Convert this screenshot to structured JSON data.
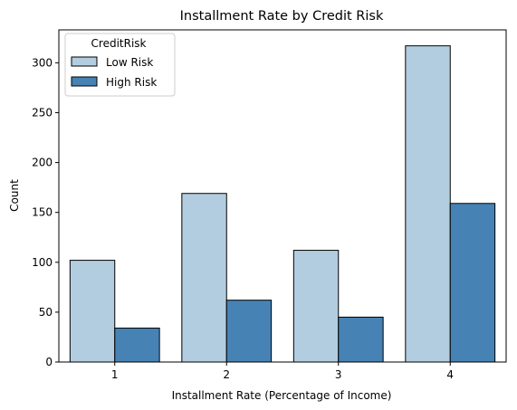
{
  "chart_data": {
    "type": "bar",
    "title": "Installment Rate by Credit Risk",
    "xlabel": "Installment Rate (Percentage of Income)",
    "ylabel": "Count",
    "categories": [
      "1",
      "2",
      "3",
      "4"
    ],
    "series": [
      {
        "name": "Low Risk",
        "color": "#b3cde0",
        "values": [
          102,
          169,
          112,
          317
        ]
      },
      {
        "name": "High Risk",
        "color": "#4682b4",
        "values": [
          34,
          62,
          45,
          159
        ]
      }
    ],
    "ylim": [
      0,
      333
    ],
    "yticks": [
      0,
      50,
      100,
      150,
      200,
      250,
      300
    ],
    "grid": false,
    "legend": {
      "title": "CreditRisk",
      "placement": "upper-left"
    }
  }
}
